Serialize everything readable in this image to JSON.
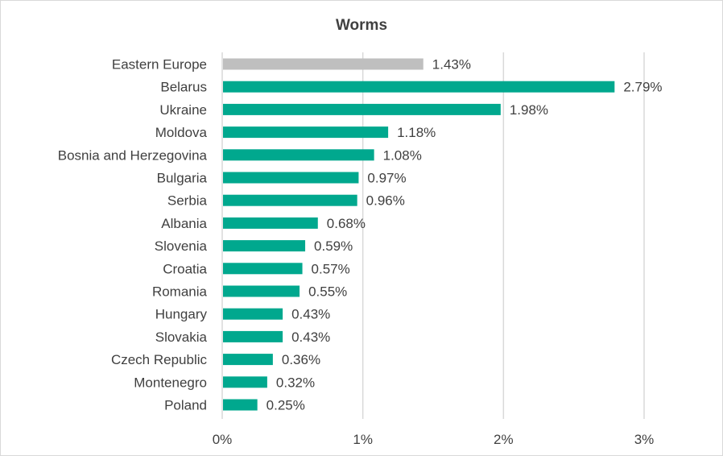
{
  "chart_data": {
    "type": "bar",
    "orientation": "horizontal",
    "title": "Worms",
    "categories": [
      "Eastern Europe",
      "Belarus",
      "Ukraine",
      "Moldova",
      "Bosnia and Herzegovina",
      "Bulgaria",
      "Serbia",
      "Albania",
      "Slovenia",
      "Croatia",
      "Romania",
      "Hungary",
      "Slovakia",
      "Czech Republic",
      "Montenegro",
      "Poland"
    ],
    "values": [
      1.43,
      2.79,
      1.98,
      1.18,
      1.08,
      0.97,
      0.96,
      0.68,
      0.59,
      0.57,
      0.55,
      0.43,
      0.43,
      0.36,
      0.32,
      0.25
    ],
    "data_labels": [
      "1.43%",
      "2.79%",
      "1.98%",
      "1.18%",
      "1.08%",
      "0.97%",
      "0.96%",
      "0.68%",
      "0.59%",
      "0.57%",
      "0.55%",
      "0.43%",
      "0.43%",
      "0.36%",
      "0.32%",
      "0.25%"
    ],
    "xlim": [
      0,
      3
    ],
    "xticks": [
      0,
      1,
      2,
      3
    ],
    "xtick_labels": [
      "0%",
      "1%",
      "2%",
      "3%"
    ],
    "xlabel": "",
    "ylabel": "",
    "grid": "vertical",
    "legend": "none",
    "colors": {
      "highlight": "#BFBFBF",
      "bars": "#00A88E",
      "grid": "#D9D9D9",
      "text": "#404040"
    }
  }
}
